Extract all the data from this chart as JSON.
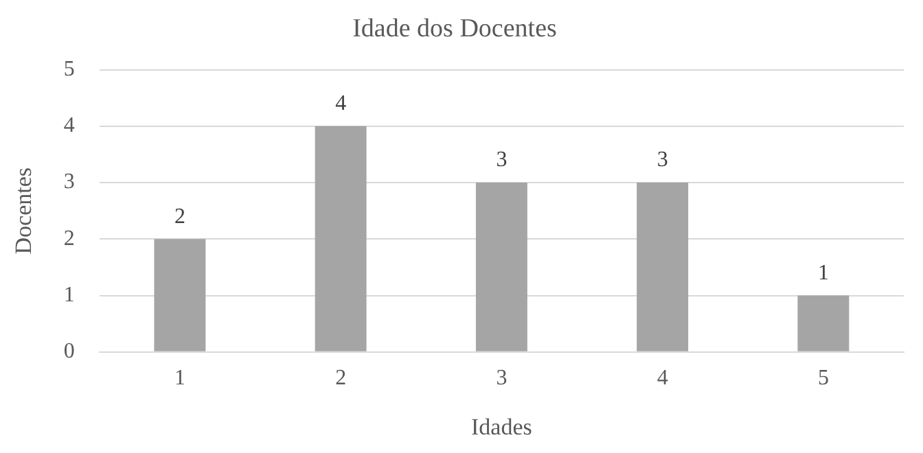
{
  "chart_data": {
    "type": "bar",
    "title": "Idade dos Docentes",
    "xlabel": "Idades",
    "ylabel": "Docentes",
    "categories": [
      "1",
      "2",
      "3",
      "4",
      "5"
    ],
    "values": [
      2,
      4,
      3,
      3,
      1
    ],
    "color": "#a5a5a5",
    "ylim": [
      0,
      5
    ],
    "yticks": [
      0,
      1,
      2,
      3,
      4,
      5
    ],
    "grid": "y",
    "data_labels": true
  }
}
